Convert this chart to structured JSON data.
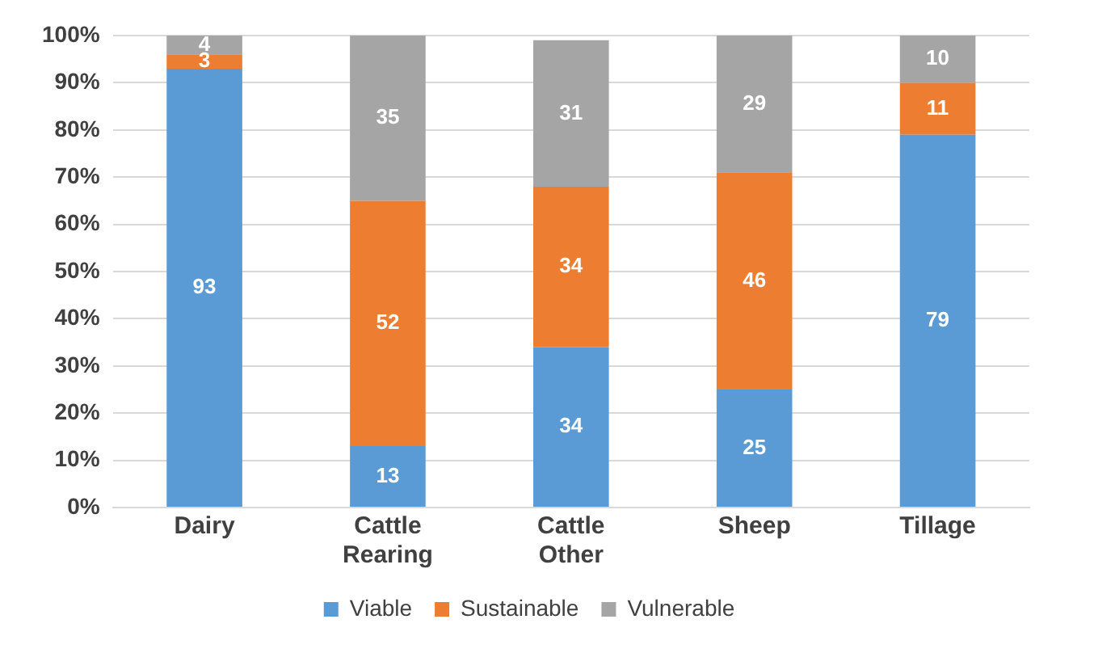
{
  "chart_data": {
    "type": "bar",
    "stacked": true,
    "categories": [
      "Dairy",
      "Cattle\nRearing",
      "Cattle\nOther",
      "Sheep",
      "Tillage"
    ],
    "series": [
      {
        "name": "Viable",
        "color": "#5b9bd5",
        "values": [
          93,
          13,
          34,
          25,
          79
        ]
      },
      {
        "name": "Sustainable",
        "color": "#ed7d31",
        "values": [
          3,
          52,
          34,
          46,
          11
        ]
      },
      {
        "name": "Vulnerable",
        "color": "#a5a5a5",
        "values": [
          4,
          35,
          31,
          29,
          10
        ]
      }
    ],
    "ylim": [
      0,
      100
    ],
    "yticks": [
      {
        "value": 0,
        "label": "0%"
      },
      {
        "value": 10,
        "label": "10%"
      },
      {
        "value": 20,
        "label": "20%"
      },
      {
        "value": 30,
        "label": "30%"
      },
      {
        "value": 40,
        "label": "40%"
      },
      {
        "value": 50,
        "label": "50%"
      },
      {
        "value": 60,
        "label": "60%"
      },
      {
        "value": 70,
        "label": "70%"
      },
      {
        "value": 80,
        "label": "80%"
      },
      {
        "value": 90,
        "label": "90%"
      },
      {
        "value": 100,
        "label": "100%"
      }
    ],
    "grid": "y",
    "legend": "bottom",
    "data_labels": true
  }
}
